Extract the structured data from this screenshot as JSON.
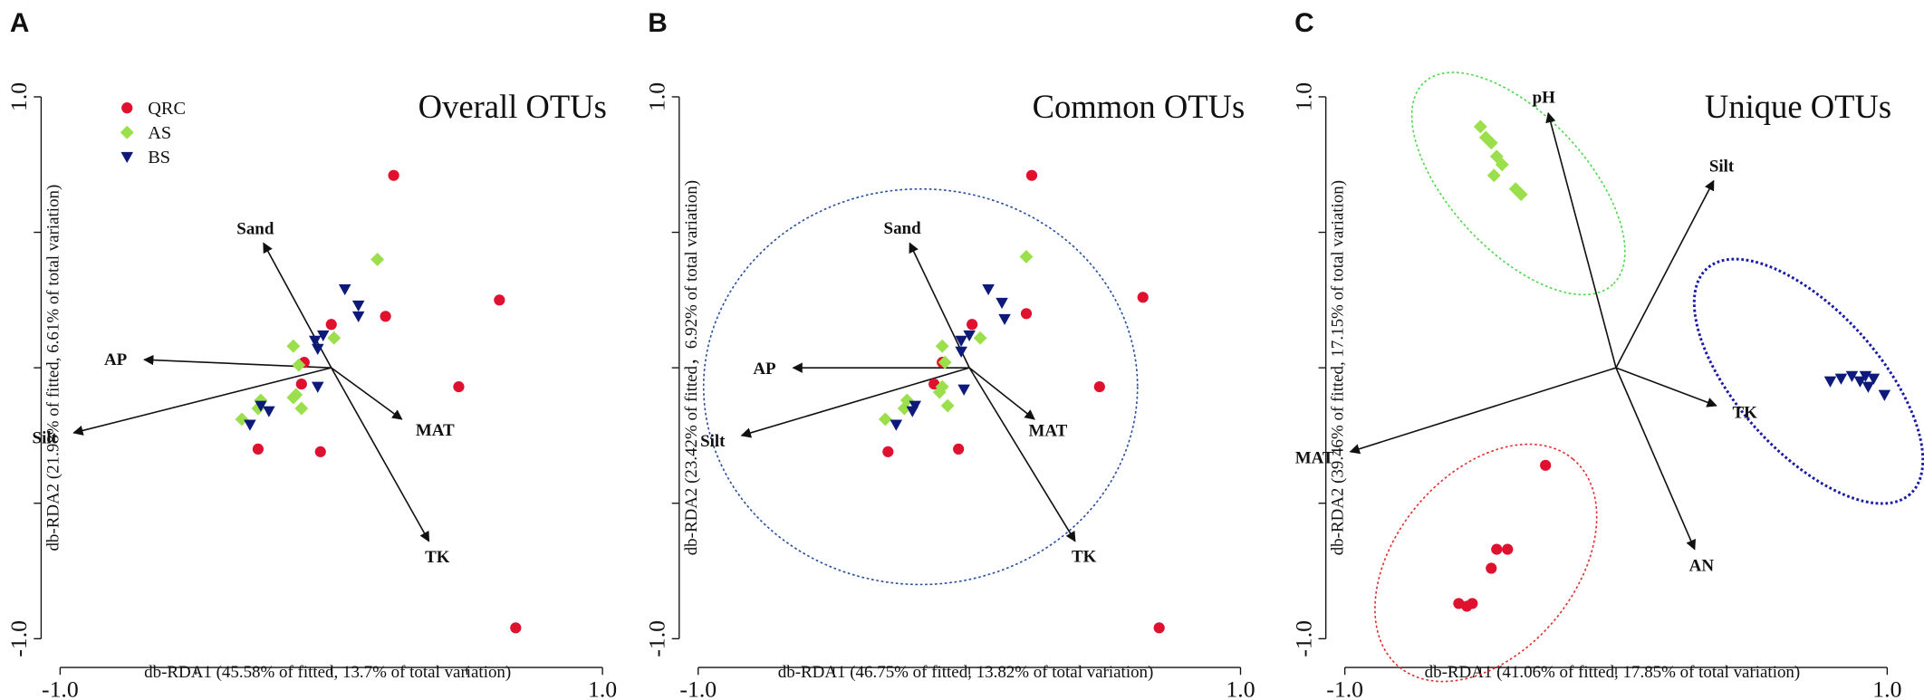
{
  "chart_data": [
    {
      "type": "scatter",
      "panel": "A",
      "title": "Overall OTUs",
      "xlabel": "db-RDA1 (45.58% of fitted, 13.7% of total variation)",
      "ylabel": "db-RDA2 (21.98% of fitted, 6.61% of total variation)",
      "xlim": [
        -1.07,
        1.07
      ],
      "ylim": [
        -1.07,
        1.07
      ],
      "xticks": [
        {
          "value": -1,
          "label": "-1.0"
        },
        {
          "value": 1,
          "label": "1.0"
        }
      ],
      "yticks": [
        {
          "value": -1,
          "label": "-1.0"
        },
        {
          "value": 1,
          "label": "1.0"
        }
      ],
      "minor_ticks": [
        -0.5,
        0,
        0.5
      ],
      "legend": "upper left",
      "series": [
        {
          "name": "QRC",
          "color": "#e0102f",
          "marker": "circle",
          "x": [
            0.23,
            0.62,
            0.2,
            0,
            -0.1,
            -0.11,
            0.47,
            -0.27,
            -0.04,
            0.68
          ],
          "values": [
            0.71,
            0.25,
            0.19,
            0.16,
            0.02,
            -0.06,
            -0.07,
            -0.3,
            -0.31,
            -0.96
          ]
        },
        {
          "name": "AS",
          "color": "#9be04c",
          "marker": "diamond",
          "x": [
            0.17,
            0.01,
            -0.14,
            -0.12,
            -0.13,
            -0.26,
            -0.27,
            -0.11,
            -0.33,
            -0.14
          ],
          "values": [
            0.4,
            0.11,
            0.08,
            0.01,
            -0.1,
            -0.12,
            -0.15,
            -0.15,
            -0.19,
            -0.11
          ]
        },
        {
          "name": "BS",
          "color": "#0d1a7a",
          "marker": "triangle-down",
          "x": [
            0.05,
            0.1,
            0.1,
            -0.03,
            -0.06,
            -0.05,
            -0.05,
            -0.23,
            -0.3,
            -0.26
          ],
          "values": [
            0.29,
            0.23,
            0.19,
            0.12,
            0.1,
            0.07,
            -0.07,
            -0.16,
            -0.21,
            -0.14
          ]
        }
      ],
      "arrows": [
        {
          "name": "Sand",
          "x": -0.25,
          "y": 0.46
        },
        {
          "name": "AP",
          "x": -0.69,
          "y": 0.03
        },
        {
          "name": "Silt",
          "x": -0.95,
          "y": -0.24
        },
        {
          "name": "MAT",
          "x": 0.26,
          "y": -0.19
        },
        {
          "name": "TK",
          "x": 0.36,
          "y": -0.64
        }
      ]
    },
    {
      "type": "scatter",
      "panel": "B",
      "title": "Common OTUs",
      "xlabel": "db-RDA1 (46.75% of fitted, 13.82% of total variation)",
      "ylabel": "db-RDA2 (23.42% of fitted，6.92% of total variation)",
      "xlim": [
        -1.07,
        1.07
      ],
      "ylim": [
        -1.07,
        1.07
      ],
      "xticks": [
        {
          "value": -1,
          "label": "-1.0"
        },
        {
          "value": 1,
          "label": "1.0"
        }
      ],
      "yticks": [
        {
          "value": -1,
          "label": "-1.0"
        },
        {
          "value": 1,
          "label": "1.0"
        }
      ],
      "minor_ticks": [
        -0.5,
        0,
        0.5
      ],
      "series": [
        {
          "color": "#e0102f",
          "marker": "circle",
          "x": [
            0.23,
            0.64,
            0.21,
            0.01,
            -0.1,
            -0.13,
            0.48,
            -0.3,
            -0.04,
            0.7
          ],
          "values": [
            0.71,
            0.26,
            0.2,
            0.16,
            0.02,
            -0.06,
            -0.07,
            -0.31,
            -0.3,
            -0.96
          ]
        },
        {
          "color": "#9be04c",
          "marker": "diamond",
          "x": [
            0.21,
            0.04,
            -0.1,
            -0.09,
            -0.11,
            -0.23,
            -0.24,
            -0.08,
            -0.31,
            -0.1
          ],
          "values": [
            0.41,
            0.11,
            0.08,
            0.02,
            -0.09,
            -0.12,
            -0.15,
            -0.14,
            -0.19,
            -0.07
          ]
        },
        {
          "color": "#0d1a7a",
          "marker": "triangle-down",
          "x": [
            0.07,
            0.12,
            0.13,
            0,
            -0.03,
            -0.03,
            -0.02,
            -0.21,
            -0.27,
            -0.2
          ],
          "values": [
            0.29,
            0.24,
            0.18,
            0.12,
            0.1,
            0.06,
            -0.08,
            -0.16,
            -0.21,
            -0.14
          ]
        }
      ],
      "arrows": [
        {
          "name": "Sand",
          "x": -0.22,
          "y": 0.46
        },
        {
          "name": "AP",
          "x": -0.65,
          "y": 0
        },
        {
          "name": "Silt",
          "x": -0.84,
          "y": -0.25
        },
        {
          "name": "MAT",
          "x": 0.24,
          "y": -0.19
        },
        {
          "name": "TK",
          "x": 0.39,
          "y": -0.64
        }
      ],
      "ellipses": [
        {
          "cx": -0.18,
          "cy": -0.07,
          "rx": 0.8,
          "ry": 0.73,
          "angle": 0,
          "color": "#2a4fa0"
        }
      ]
    },
    {
      "type": "scatter",
      "panel": "C",
      "title": "Unique OTUs",
      "xlabel": "db-RDA1 (41.06% of fitted, 17.85% of total variation)",
      "ylabel": "db-RDA2 (39.46% of fitted, 17.15% of total variation)",
      "xlim": [
        -1.07,
        1.07
      ],
      "ylim": [
        -1.07,
        1.07
      ],
      "xticks": [
        {
          "value": -1,
          "label": "-1.0"
        },
        {
          "value": 1,
          "label": "1.0"
        }
      ],
      "yticks": [
        {
          "value": -1,
          "label": "-1.0"
        },
        {
          "value": 1,
          "label": "1.0"
        }
      ],
      "minor_ticks": [
        -0.5,
        0,
        0.5
      ],
      "series": [
        {
          "color": "#e0102f",
          "marker": "circle",
          "x": [
            -0.26,
            -0.44,
            -0.4,
            -0.46,
            -0.58,
            -0.55,
            -0.53
          ],
          "values": [
            -0.36,
            -0.67,
            -0.67,
            -0.74,
            -0.87,
            -0.88,
            -0.87
          ]
        },
        {
          "color": "#9be04c",
          "marker": "diamond",
          "x": [
            -0.5,
            -0.48,
            -0.46,
            -0.44,
            -0.42,
            -0.45,
            -0.37,
            -0.35
          ],
          "values": [
            0.89,
            0.85,
            0.83,
            0.78,
            0.75,
            0.71,
            0.66,
            0.64
          ]
        },
        {
          "color": "#0d1a7a",
          "marker": "triangle-down",
          "x": [
            0.79,
            0.83,
            0.87,
            0.9,
            0.92,
            0.95,
            0.93,
            0.99
          ],
          "values": [
            -0.05,
            -0.04,
            -0.03,
            -0.05,
            -0.03,
            -0.04,
            -0.07,
            -0.1
          ]
        }
      ],
      "arrows": [
        {
          "name": "pH",
          "x": -0.25,
          "y": 0.94
        },
        {
          "name": "Silt",
          "x": 0.36,
          "y": 0.69
        },
        {
          "name": "TK",
          "x": 0.37,
          "y": -0.14
        },
        {
          "name": "AN",
          "x": 0.29,
          "y": -0.67
        },
        {
          "name": "MAT",
          "x": -0.98,
          "y": -0.31
        }
      ],
      "ellipses": [
        {
          "cx": -0.36,
          "cy": 0.68,
          "rx": 0.51,
          "ry": 0.25,
          "angle": -47,
          "color": "#4cd94c"
        },
        {
          "cx": 0.71,
          "cy": -0.05,
          "rx": 0.56,
          "ry": 0.26,
          "angle": -48,
          "color": "#1a1aa8"
        },
        {
          "cx": -0.48,
          "cy": -0.72,
          "rx": 0.5,
          "ry": 0.33,
          "angle": 50,
          "color": "#e03030"
        }
      ]
    }
  ]
}
